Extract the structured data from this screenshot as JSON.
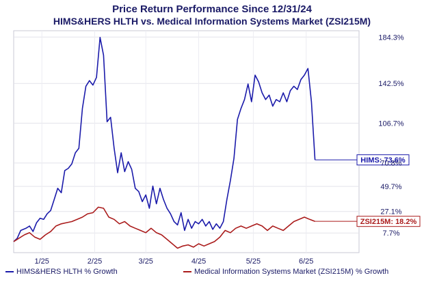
{
  "chart_data": {
    "type": "line",
    "title": "Price Return Performance Since 12/31/24",
    "subtitle": "HIMS&HERS HLTH  vs.  Medical Information Systems Market (ZSI215M)",
    "x_ticks": [
      "1/25",
      "2/25",
      "3/25",
      "4/25",
      "5/25",
      "6/25"
    ],
    "y_ticks": [
      "184.3%",
      "142.5%",
      "106.7%",
      "70.8%",
      "49.7%",
      "27.1%",
      "7.7%"
    ],
    "y_tick_values": [
      184.3,
      142.5,
      106.7,
      70.8,
      49.7,
      27.1,
      7.7
    ],
    "ylim": [
      -10,
      190
    ],
    "grid": true,
    "legend_position": "bottom",
    "series": [
      {
        "name": "HIMS&HERS HLTH % Growth",
        "color": "#1a1aaa",
        "end_label": "HIMS: 73.6%",
        "points": [
          [
            "2024-12-31",
            0
          ],
          [
            "2025-01-02",
            3
          ],
          [
            "2025-01-04",
            10
          ],
          [
            "2025-01-07",
            12
          ],
          [
            "2025-01-09",
            14
          ],
          [
            "2025-01-11",
            9
          ],
          [
            "2025-01-13",
            17
          ],
          [
            "2025-01-15",
            21
          ],
          [
            "2025-01-17",
            20
          ],
          [
            "2025-01-19",
            25
          ],
          [
            "2025-01-21",
            28
          ],
          [
            "2025-01-23",
            38
          ],
          [
            "2025-01-25",
            48
          ],
          [
            "2025-01-27",
            44
          ],
          [
            "2025-01-29",
            64
          ],
          [
            "2025-01-31",
            66
          ],
          [
            "2025-02-02",
            70
          ],
          [
            "2025-02-04",
            80
          ],
          [
            "2025-02-06",
            84
          ],
          [
            "2025-02-08",
            120
          ],
          [
            "2025-02-10",
            140
          ],
          [
            "2025-02-12",
            145
          ],
          [
            "2025-02-14",
            141
          ],
          [
            "2025-02-16",
            148
          ],
          [
            "2025-02-18",
            184
          ],
          [
            "2025-02-20",
            168
          ],
          [
            "2025-02-22",
            108
          ],
          [
            "2025-02-24",
            112
          ],
          [
            "2025-02-26",
            84
          ],
          [
            "2025-02-28",
            62
          ],
          [
            "2025-03-02",
            80
          ],
          [
            "2025-03-04",
            63
          ],
          [
            "2025-03-06",
            72
          ],
          [
            "2025-03-08",
            65
          ],
          [
            "2025-03-10",
            48
          ],
          [
            "2025-03-12",
            45
          ],
          [
            "2025-03-14",
            36
          ],
          [
            "2025-03-16",
            42
          ],
          [
            "2025-03-18",
            30
          ],
          [
            "2025-03-20",
            50
          ],
          [
            "2025-03-22",
            34
          ],
          [
            "2025-03-24",
            48
          ],
          [
            "2025-03-26",
            38
          ],
          [
            "2025-03-28",
            30
          ],
          [
            "2025-03-30",
            25
          ],
          [
            "2025-04-01",
            18
          ],
          [
            "2025-04-03",
            15
          ],
          [
            "2025-04-05",
            26
          ],
          [
            "2025-04-07",
            10
          ],
          [
            "2025-04-09",
            20
          ],
          [
            "2025-04-11",
            12
          ],
          [
            "2025-04-13",
            18
          ],
          [
            "2025-04-15",
            16
          ],
          [
            "2025-04-17",
            20
          ],
          [
            "2025-04-19",
            14
          ],
          [
            "2025-04-21",
            18
          ],
          [
            "2025-04-23",
            11
          ],
          [
            "2025-04-25",
            16
          ],
          [
            "2025-04-27",
            12
          ],
          [
            "2025-04-29",
            18
          ],
          [
            "2025-05-01",
            38
          ],
          [
            "2025-05-03",
            55
          ],
          [
            "2025-05-05",
            75
          ],
          [
            "2025-05-07",
            110
          ],
          [
            "2025-05-09",
            120
          ],
          [
            "2025-05-11",
            128
          ],
          [
            "2025-05-13",
            142
          ],
          [
            "2025-05-15",
            126
          ],
          [
            "2025-05-17",
            150
          ],
          [
            "2025-05-19",
            144
          ],
          [
            "2025-05-21",
            134
          ],
          [
            "2025-05-23",
            128
          ],
          [
            "2025-05-25",
            132
          ],
          [
            "2025-05-27",
            122
          ],
          [
            "2025-05-29",
            128
          ],
          [
            "2025-05-31",
            126
          ],
          [
            "2025-06-02",
            134
          ],
          [
            "2025-06-04",
            126
          ],
          [
            "2025-06-06",
            136
          ],
          [
            "2025-06-08",
            140
          ],
          [
            "2025-06-10",
            137
          ],
          [
            "2025-06-12",
            146
          ],
          [
            "2025-06-14",
            150
          ],
          [
            "2025-06-16",
            156
          ],
          [
            "2025-06-18",
            126
          ],
          [
            "2025-06-20",
            73.6
          ]
        ]
      },
      {
        "name": "Medical Information Systems Market (ZSI215M) % Growth",
        "color": "#aa1a1a",
        "end_label": "ZSI215M: 18.2%",
        "points": [
          [
            "2024-12-31",
            0
          ],
          [
            "2025-01-03",
            3
          ],
          [
            "2025-01-06",
            6
          ],
          [
            "2025-01-09",
            8
          ],
          [
            "2025-01-12",
            4
          ],
          [
            "2025-01-15",
            2
          ],
          [
            "2025-01-18",
            6
          ],
          [
            "2025-01-21",
            9
          ],
          [
            "2025-01-24",
            14
          ],
          [
            "2025-01-27",
            16
          ],
          [
            "2025-01-30",
            17
          ],
          [
            "2025-02-02",
            18
          ],
          [
            "2025-02-05",
            20
          ],
          [
            "2025-02-08",
            22
          ],
          [
            "2025-02-11",
            25
          ],
          [
            "2025-02-14",
            26
          ],
          [
            "2025-02-17",
            31
          ],
          [
            "2025-02-20",
            30
          ],
          [
            "2025-02-23",
            22
          ],
          [
            "2025-02-26",
            20
          ],
          [
            "2025-03-01",
            16
          ],
          [
            "2025-03-04",
            18
          ],
          [
            "2025-03-07",
            14
          ],
          [
            "2025-03-10",
            12
          ],
          [
            "2025-03-13",
            10
          ],
          [
            "2025-03-16",
            8
          ],
          [
            "2025-03-19",
            12
          ],
          [
            "2025-03-22",
            8
          ],
          [
            "2025-03-25",
            6
          ],
          [
            "2025-03-28",
            2
          ],
          [
            "2025-03-31",
            -2
          ],
          [
            "2025-04-03",
            -6
          ],
          [
            "2025-04-06",
            -4
          ],
          [
            "2025-04-09",
            -3
          ],
          [
            "2025-04-12",
            -5
          ],
          [
            "2025-04-15",
            -2
          ],
          [
            "2025-04-18",
            -4
          ],
          [
            "2025-04-21",
            -2
          ],
          [
            "2025-04-24",
            0
          ],
          [
            "2025-04-27",
            4
          ],
          [
            "2025-04-30",
            10
          ],
          [
            "2025-05-03",
            8
          ],
          [
            "2025-05-06",
            12
          ],
          [
            "2025-05-09",
            14
          ],
          [
            "2025-05-12",
            12
          ],
          [
            "2025-05-15",
            14
          ],
          [
            "2025-05-18",
            16
          ],
          [
            "2025-05-21",
            14
          ],
          [
            "2025-05-24",
            10
          ],
          [
            "2025-05-27",
            14
          ],
          [
            "2025-05-30",
            12
          ],
          [
            "2025-06-02",
            10
          ],
          [
            "2025-06-05",
            14
          ],
          [
            "2025-06-08",
            18
          ],
          [
            "2025-06-11",
            20
          ],
          [
            "2025-06-14",
            22
          ],
          [
            "2025-06-17",
            20
          ],
          [
            "2025-06-20",
            18.2
          ]
        ]
      }
    ]
  }
}
